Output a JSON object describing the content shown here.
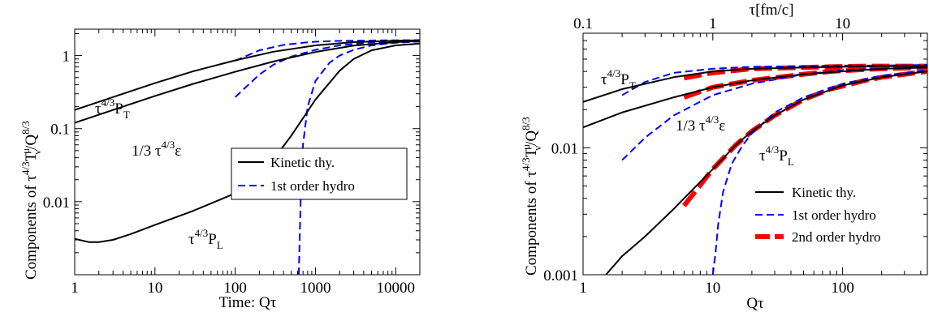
{
  "chart_data": [
    {
      "type": "line",
      "xlabel": "Time: Qτ",
      "ylabel": "Components of τ4/3Tνμ/Q8/3",
      "xscale": "log",
      "yscale": "log",
      "xlim": [
        1,
        20000
      ],
      "ylim": [
        0.001,
        2.3
      ],
      "x_ticks": [
        "1",
        "10",
        "100",
        "1000",
        "10000"
      ],
      "y_ticks": [
        "0.01",
        "0.1",
        "1"
      ],
      "legend_position": "center-right",
      "series": [
        {
          "name": "Kinetic thy.",
          "label": "τ4/3PT",
          "style": "solid",
          "color": "#000000",
          "x": [
            1,
            3,
            10,
            30,
            100,
            300,
            1000,
            3000,
            10000,
            20000
          ],
          "y": [
            0.18,
            0.27,
            0.42,
            0.61,
            0.86,
            1.13,
            1.38,
            1.53,
            1.6,
            1.62
          ]
        },
        {
          "name": "Kinetic thy.",
          "label": "1/3 τ4/3ε",
          "style": "solid",
          "color": "#000000",
          "x": [
            1,
            3,
            10,
            30,
            100,
            300,
            1000,
            3000,
            10000,
            20000
          ],
          "y": [
            0.12,
            0.18,
            0.28,
            0.41,
            0.6,
            0.83,
            1.12,
            1.37,
            1.53,
            1.58
          ]
        },
        {
          "name": "Kinetic thy.",
          "label": "τ4/3PL",
          "style": "solid",
          "color": "#000000",
          "x": [
            1,
            1.5,
            2,
            3,
            5,
            10,
            30,
            100,
            200,
            300,
            500,
            1000,
            2000,
            3000,
            5000,
            10000,
            20000
          ],
          "y": [
            0.0031,
            0.0028,
            0.0028,
            0.003,
            0.0036,
            0.0048,
            0.0075,
            0.013,
            0.023,
            0.038,
            0.08,
            0.25,
            0.62,
            0.9,
            1.18,
            1.38,
            1.46
          ]
        },
        {
          "name": "1st order hydro",
          "style": "dashed",
          "color": "#0000ff",
          "x": [
            100,
            200,
            400,
            700,
            1000,
            2000,
            5000,
            10000,
            20000
          ],
          "y": [
            0.85,
            1.18,
            1.4,
            1.5,
            1.55,
            1.59,
            1.61,
            1.62,
            1.63
          ]
        },
        {
          "name": "1st order hydro",
          "style": "dashed",
          "color": "#0000ff",
          "x": [
            100,
            200,
            300,
            500,
            1000,
            2000,
            5000,
            10000,
            20000
          ],
          "y": [
            0.27,
            0.55,
            0.75,
            0.97,
            1.2,
            1.38,
            1.52,
            1.57,
            1.6
          ]
        },
        {
          "name": "1st order hydro",
          "style": "dashed",
          "color": "#0000ff",
          "x": [
            620,
            640,
            660,
            700,
            800,
            1000,
            1500,
            2000,
            3000,
            5000,
            10000,
            20000
          ],
          "y": [
            0.001,
            0.004,
            0.015,
            0.06,
            0.2,
            0.45,
            0.8,
            1.0,
            1.2,
            1.38,
            1.5,
            1.56
          ]
        }
      ],
      "annotations": [
        {
          "text": "τ4/3PT"
        },
        {
          "text": "1/3 τ4/3ε"
        },
        {
          "text": "τ4/3PL"
        }
      ]
    },
    {
      "type": "line",
      "xlabel": "Qτ",
      "x2label": "τ[fm/c]",
      "ylabel": "Components of τ4/3Tνμ/Q8/3",
      "xscale": "log",
      "yscale": "log",
      "xlim": [
        1,
        450
      ],
      "ylim": [
        0.001,
        0.08
      ],
      "x_ticks": [
        "1",
        "10",
        "100"
      ],
      "x2_ticks": [
        "0.1",
        "1",
        "10"
      ],
      "y_ticks": [
        "0.001",
        "0.01"
      ],
      "legend_position": "bottom-right",
      "series": [
        {
          "name": "Kinetic thy.",
          "label": "τ4/3PT",
          "style": "solid",
          "color": "#000000",
          "x": [
            1,
            2,
            5,
            10,
            20,
            50,
            100,
            200,
            450
          ],
          "y": [
            0.023,
            0.029,
            0.036,
            0.04,
            0.042,
            0.043,
            0.0435,
            0.044,
            0.044
          ]
        },
        {
          "name": "Kinetic thy.",
          "label": "1/3 τ4/3ε",
          "style": "solid",
          "color": "#000000",
          "x": [
            1,
            2,
            5,
            10,
            20,
            50,
            100,
            200,
            450
          ],
          "y": [
            0.0145,
            0.019,
            0.025,
            0.03,
            0.034,
            0.038,
            0.04,
            0.042,
            0.043
          ]
        },
        {
          "name": "Kinetic thy.",
          "label": "τ4/3PL",
          "style": "solid",
          "color": "#000000",
          "x": [
            1.5,
            2,
            3,
            5,
            7,
            10,
            15,
            20,
            30,
            50,
            100,
            200,
            450
          ],
          "y": [
            0.001,
            0.0014,
            0.002,
            0.0033,
            0.0047,
            0.0068,
            0.0105,
            0.0135,
            0.018,
            0.024,
            0.031,
            0.036,
            0.04
          ]
        },
        {
          "name": "1st order hydro",
          "style": "dashed",
          "color": "#0000ff",
          "x": [
            2,
            3,
            5,
            10,
            20,
            50,
            100,
            200,
            450
          ],
          "y": [
            0.026,
            0.033,
            0.039,
            0.042,
            0.0435,
            0.044,
            0.0445,
            0.0445,
            0.045
          ]
        },
        {
          "name": "1st order hydro",
          "style": "dashed",
          "color": "#0000ff",
          "x": [
            2,
            3,
            5,
            10,
            20,
            50,
            100,
            200,
            450
          ],
          "y": [
            0.008,
            0.012,
            0.018,
            0.026,
            0.032,
            0.038,
            0.041,
            0.042,
            0.043
          ]
        },
        {
          "name": "1st order hydro",
          "style": "dashed",
          "color": "#0000ff",
          "x": [
            10,
            10.5,
            11,
            12,
            14,
            17,
            20,
            30,
            50,
            100,
            200,
            450
          ],
          "y": [
            0.001,
            0.0015,
            0.0025,
            0.0045,
            0.0075,
            0.0105,
            0.013,
            0.019,
            0.025,
            0.032,
            0.037,
            0.041
          ]
        },
        {
          "name": "2nd order hydro",
          "style": "long-dashed",
          "color": "#ff0000",
          "x": [
            6,
            10,
            20,
            50,
            80,
            150,
            200,
            450
          ],
          "y": [
            0.0355,
            0.039,
            0.042,
            0.043,
            0.0435,
            0.044,
            0.044,
            0.044
          ]
        },
        {
          "name": "2nd order hydro",
          "style": "long-dashed",
          "color": "#ff0000",
          "x": [
            6,
            10,
            20,
            50,
            80,
            150,
            200,
            450
          ],
          "y": [
            0.025,
            0.03,
            0.034,
            0.038,
            0.04,
            0.0415,
            0.042,
            0.043
          ]
        },
        {
          "name": "2nd order hydro",
          "style": "long-dashed",
          "color": "#ff0000",
          "x": [
            6,
            10,
            15,
            20,
            30,
            50,
            80,
            150,
            200,
            450
          ],
          "y": [
            0.0035,
            0.0068,
            0.0105,
            0.0135,
            0.018,
            0.024,
            0.029,
            0.034,
            0.036,
            0.04
          ]
        }
      ],
      "annotations": [
        {
          "text": "τ4/3PT"
        },
        {
          "text": "1/3 τ4/3ε"
        },
        {
          "text": "τ4/3PL"
        }
      ]
    }
  ],
  "legend_left": [
    {
      "label": "Kinetic thy.",
      "style": "solid",
      "color": "#000000"
    },
    {
      "label": "1st order hydro",
      "style": "dashed",
      "color": "#0000ff"
    }
  ],
  "legend_right": [
    {
      "label": "Kinetic thy.",
      "style": "solid",
      "color": "#000000"
    },
    {
      "label": "1st order hydro",
      "style": "dashed",
      "color": "#0000ff"
    },
    {
      "label": "2nd order hydro",
      "style": "long-dashed",
      "color": "#ff0000"
    }
  ],
  "labels": {
    "left_xlabel": "Time: Qτ",
    "right_xlabel": "Qτ",
    "right_x2label": "τ[fm/c]",
    "ylabel_prefix": "Components of τ",
    "ylabel_sup1": "4/3",
    "ylabel_T": "T",
    "ylabel_sup2": "μ",
    "ylabel_sub2": "ν",
    "ylabel_mid": "/Q",
    "ylabel_sup3": "8/3",
    "tau": "τ",
    "sup43": "4/3",
    "P": "P",
    "subT": "T",
    "subL": "L",
    "eps_prefix": "1/3 τ",
    "eps": "ε"
  }
}
